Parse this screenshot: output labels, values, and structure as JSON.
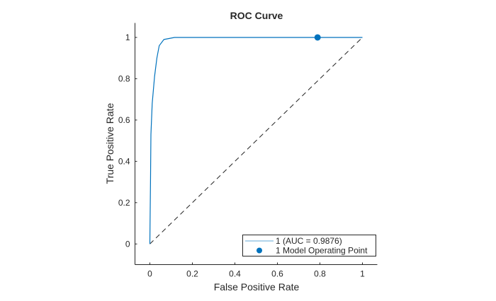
{
  "chart_data": {
    "type": "line",
    "title": "ROC Curve",
    "xlabel": "False Positive Rate",
    "ylabel": "True Positive Rate",
    "xlim": [
      -0.07,
      1.07
    ],
    "ylim": [
      -0.1,
      1.07
    ],
    "xticks": [
      "0",
      "0.2",
      "0.4",
      "0.6",
      "0.8",
      "1"
    ],
    "yticks": [
      "0",
      "0.2",
      "0.4",
      "0.6",
      "0.8",
      "1"
    ],
    "grid": false,
    "legend_position": "bottom-right",
    "series": [
      {
        "name": "1 (AUC = 0.9876)",
        "color": "#0072BD",
        "x": [
          0,
          0.001,
          0.003,
          0.005,
          0.011,
          0.022,
          0.033,
          0.044,
          0.066,
          0.116,
          1
        ],
        "y": [
          0,
          0.108,
          0.3,
          0.53,
          0.68,
          0.81,
          0.9,
          0.96,
          0.99,
          1.0,
          1.0
        ]
      }
    ],
    "operating_point": {
      "name": "1 Model Operating Point",
      "x": 0.789,
      "y": 1.0,
      "color": "#0072BD"
    },
    "reference_line": {
      "x": [
        0,
        1
      ],
      "y": [
        0,
        1
      ],
      "style": "dashed",
      "color": "#262626"
    }
  }
}
